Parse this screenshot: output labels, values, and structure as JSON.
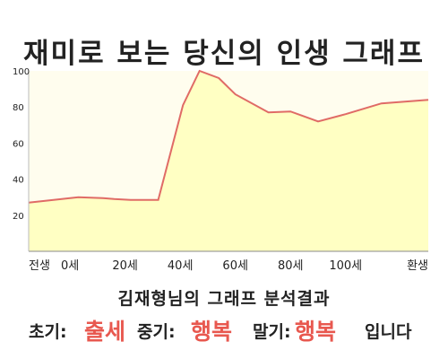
{
  "chart_data": {
    "type": "area",
    "title": "재미로 보는 당신의 인생 그래프",
    "x": [
      -15,
      -6,
      0,
      3,
      12,
      16,
      22,
      32,
      41,
      47,
      54,
      60,
      72,
      80,
      90,
      100,
      113,
      130
    ],
    "y": [
      27,
      28.5,
      29.5,
      30,
      29.5,
      29,
      28.5,
      28.5,
      81,
      100,
      96,
      87,
      77,
      77.5,
      72,
      76,
      82,
      84
    ],
    "xlim": [
      -15,
      130
    ],
    "ylim": [
      0,
      100
    ],
    "xticks": [
      {
        "value": -15,
        "label": "전생"
      },
      {
        "value": 0,
        "label": "0세"
      },
      {
        "value": 20,
        "label": "20세"
      },
      {
        "value": 40,
        "label": "40세"
      },
      {
        "value": 60,
        "label": "60세"
      },
      {
        "value": 80,
        "label": "80세"
      },
      {
        "value": 100,
        "label": "100세"
      },
      {
        "value": 130,
        "label": "환생"
      }
    ],
    "yticks": [
      20,
      40,
      60,
      80,
      100
    ],
    "grid": false,
    "line_color": "#e06b66",
    "fill_color": "#ffffc3",
    "background_color": "#fffdee"
  },
  "subtitle": "김재형님의 그래프 분석결과",
  "result": {
    "early_label": "초기:",
    "early_value": "출세",
    "middle_label": "중기:",
    "middle_value": "행복",
    "late_label": "말기:",
    "late_value": "행복",
    "closing": "입니다"
  },
  "accent_color": "#e8584f"
}
